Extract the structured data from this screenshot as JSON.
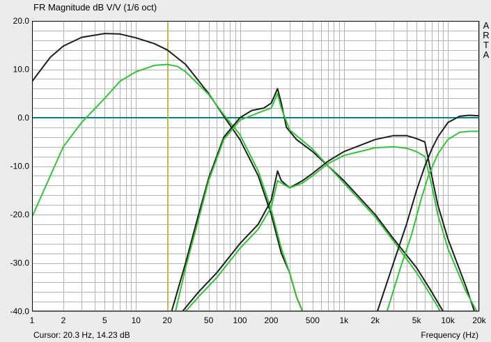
{
  "title": "FR Magnitude dB V/V (1/6 oct)",
  "watermark": [
    "A",
    "R",
    "T",
    "A"
  ],
  "cursor_text": "Cursor: 20.3 Hz, 14.23 dB",
  "x_axis_label": "Frequency (Hz)",
  "colors": {
    "background": "#ececec",
    "plot_background": "#ffffff",
    "grid": "#b4b4b4",
    "zero_line": "#0f7d86",
    "cursor": "#b9b934",
    "black_curve": "#1c1c1c",
    "green_curve": "#35c03c"
  },
  "chart_data": {
    "type": "line",
    "title": "FR Magnitude dB V/V (1/6 oct)",
    "xlabel": "Frequency (Hz)",
    "ylabel": "",
    "x_scale": "log",
    "xlim": [
      1,
      20000
    ],
    "ylim": [
      -40,
      20
    ],
    "grid": true,
    "x_ticks": [
      {
        "v": 1,
        "label": "1"
      },
      {
        "v": 2,
        "label": "2"
      },
      {
        "v": 5,
        "label": "5"
      },
      {
        "v": 10,
        "label": "10"
      },
      {
        "v": 20,
        "label": "20"
      },
      {
        "v": 50,
        "label": "50"
      },
      {
        "v": 100,
        "label": "100"
      },
      {
        "v": 200,
        "label": "200"
      },
      {
        "v": 500,
        "label": "500"
      },
      {
        "v": 1000,
        "label": "1k"
      },
      {
        "v": 2000,
        "label": "2k"
      },
      {
        "v": 5000,
        "label": "5k"
      },
      {
        "v": 10000,
        "label": "10k"
      },
      {
        "v": 20000,
        "label": "20k"
      }
    ],
    "y_ticks": [
      {
        "v": 20,
        "label": "20.0"
      },
      {
        "v": 10,
        "label": "10.0"
      },
      {
        "v": 0,
        "label": "0.0"
      },
      {
        "v": -10,
        "label": "-10.0"
      },
      {
        "v": -20,
        "label": "-20.0"
      },
      {
        "v": -30,
        "label": "-30.0"
      },
      {
        "v": -40,
        "label": "-40.0"
      }
    ],
    "cursor": {
      "x": 20.3,
      "y": 14.23
    },
    "series": [
      {
        "color": "black",
        "points": [
          [
            1,
            7.5
          ],
          [
            1.5,
            12.5
          ],
          [
            2,
            14.8
          ],
          [
            3,
            16.6
          ],
          [
            5,
            17.4
          ],
          [
            7,
            17.3
          ],
          [
            10,
            16.5
          ],
          [
            15,
            15.3
          ],
          [
            20,
            14
          ],
          [
            30,
            11
          ],
          [
            50,
            5
          ],
          [
            70,
            0.3
          ],
          [
            100,
            -4.5
          ],
          [
            150,
            -12
          ],
          [
            200,
            -20
          ],
          [
            250,
            -28
          ],
          [
            300,
            -32
          ],
          [
            350,
            -37
          ],
          [
            400,
            -40
          ]
        ]
      },
      {
        "color": "green",
        "points": [
          [
            1,
            -20.5
          ],
          [
            1.5,
            -12
          ],
          [
            2,
            -6
          ],
          [
            3,
            -1
          ],
          [
            5,
            4
          ],
          [
            7,
            7.5
          ],
          [
            10,
            9.5
          ],
          [
            15,
            10.8
          ],
          [
            20,
            11
          ],
          [
            25,
            10.6
          ],
          [
            30,
            9.5
          ],
          [
            50,
            4.8
          ],
          [
            70,
            0.6
          ],
          [
            100,
            -3.5
          ],
          [
            150,
            -11
          ],
          [
            200,
            -19
          ],
          [
            250,
            -27
          ],
          [
            300,
            -32
          ],
          [
            350,
            -37
          ],
          [
            400,
            -40
          ]
        ]
      },
      {
        "color": "black",
        "points": [
          [
            22,
            -40
          ],
          [
            30,
            -30
          ],
          [
            40,
            -20
          ],
          [
            50,
            -12.5
          ],
          [
            70,
            -4
          ],
          [
            100,
            0
          ],
          [
            130,
            1.5
          ],
          [
            170,
            2
          ],
          [
            200,
            3
          ],
          [
            230,
            6
          ],
          [
            250,
            3
          ],
          [
            280,
            -2
          ],
          [
            350,
            -4.5
          ],
          [
            500,
            -7
          ],
          [
            1000,
            -13
          ],
          [
            2000,
            -20
          ],
          [
            3000,
            -25
          ],
          [
            5000,
            -31
          ],
          [
            7000,
            -36
          ],
          [
            9000,
            -40
          ]
        ]
      },
      {
        "color": "green",
        "points": [
          [
            24,
            -40
          ],
          [
            30,
            -31
          ],
          [
            40,
            -21
          ],
          [
            50,
            -13
          ],
          [
            70,
            -4.5
          ],
          [
            100,
            -0.5
          ],
          [
            150,
            1
          ],
          [
            200,
            2
          ],
          [
            230,
            5
          ],
          [
            250,
            2
          ],
          [
            300,
            -2.5
          ],
          [
            500,
            -6.5
          ],
          [
            1000,
            -13.5
          ],
          [
            2000,
            -20.5
          ],
          [
            3000,
            -25.5
          ],
          [
            5000,
            -32
          ],
          [
            7000,
            -37
          ],
          [
            8500,
            -40
          ]
        ]
      },
      {
        "color": "black",
        "points": [
          [
            28,
            -40
          ],
          [
            40,
            -36
          ],
          [
            60,
            -32
          ],
          [
            100,
            -26
          ],
          [
            150,
            -22
          ],
          [
            200,
            -17
          ],
          [
            230,
            -11
          ],
          [
            250,
            -13
          ],
          [
            300,
            -14.5
          ],
          [
            400,
            -13
          ],
          [
            500,
            -11.5
          ],
          [
            700,
            -9
          ],
          [
            1000,
            -7
          ],
          [
            2000,
            -4.5
          ],
          [
            3000,
            -3.7
          ],
          [
            4000,
            -3.7
          ],
          [
            5000,
            -4.3
          ],
          [
            6000,
            -5
          ],
          [
            7000,
            -12
          ],
          [
            8000,
            -18
          ],
          [
            10000,
            -25
          ],
          [
            15000,
            -35
          ],
          [
            18000,
            -40
          ]
        ]
      },
      {
        "color": "green",
        "points": [
          [
            30,
            -40
          ],
          [
            40,
            -37
          ],
          [
            60,
            -33
          ],
          [
            100,
            -27
          ],
          [
            150,
            -23
          ],
          [
            200,
            -18.5
          ],
          [
            230,
            -13
          ],
          [
            250,
            -13.5
          ],
          [
            300,
            -14.5
          ],
          [
            400,
            -13.5
          ],
          [
            500,
            -12
          ],
          [
            700,
            -9.5
          ],
          [
            1000,
            -7.8
          ],
          [
            2000,
            -6.2
          ],
          [
            3000,
            -6
          ],
          [
            4000,
            -6.3
          ],
          [
            5000,
            -7
          ],
          [
            6000,
            -8
          ],
          [
            7000,
            -14
          ],
          [
            8000,
            -20
          ],
          [
            10000,
            -27
          ],
          [
            15000,
            -36
          ],
          [
            19000,
            -40
          ]
        ]
      },
      {
        "color": "black",
        "points": [
          [
            2100,
            -40
          ],
          [
            3000,
            -30
          ],
          [
            4000,
            -22
          ],
          [
            5000,
            -15
          ],
          [
            6000,
            -10
          ],
          [
            7000,
            -6.5
          ],
          [
            8000,
            -4
          ],
          [
            10000,
            -1
          ],
          [
            13000,
            0.3
          ],
          [
            16000,
            0.5
          ],
          [
            20000,
            0.4
          ]
        ]
      },
      {
        "color": "green",
        "points": [
          [
            2600,
            -40
          ],
          [
            3500,
            -31
          ],
          [
            4500,
            -24
          ],
          [
            5500,
            -17
          ],
          [
            6500,
            -12
          ],
          [
            8000,
            -7.5
          ],
          [
            10000,
            -4.5
          ],
          [
            13000,
            -3
          ],
          [
            16000,
            -2.8
          ],
          [
            20000,
            -2.8
          ]
        ]
      }
    ]
  }
}
